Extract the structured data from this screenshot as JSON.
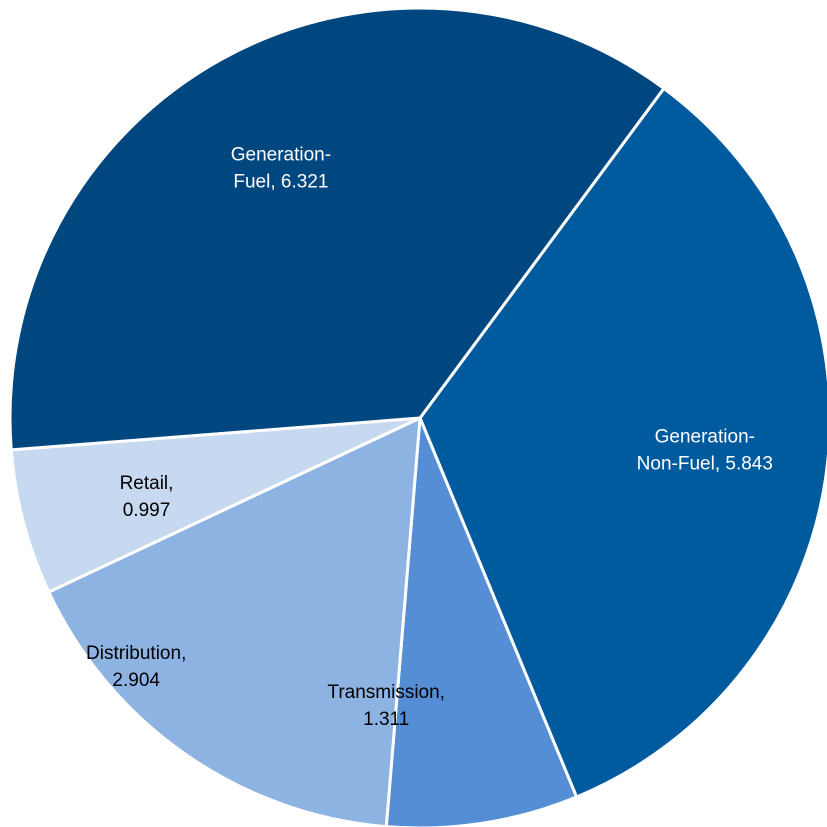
{
  "chart_data": {
    "type": "pie",
    "title": "",
    "slices": [
      {
        "name": "Generation-Non-Fuel",
        "value": 5.843,
        "label_lines": [
          "Generation-",
          "Non-Fuel,  5.843"
        ],
        "color": "#005A9E",
        "label_color": "#ffffff"
      },
      {
        "name": "Transmission",
        "value": 1.311,
        "label_lines": [
          "Transmission,",
          "1.311"
        ],
        "color": "#558ED5",
        "label_color": "#000000"
      },
      {
        "name": "Distribution",
        "value": 2.904,
        "label_lines": [
          "Distribution,",
          "2.904"
        ],
        "color": "#8DB3E2",
        "label_color": "#000000"
      },
      {
        "name": "Retail",
        "value": 0.997,
        "label_lines": [
          "Retail,",
          "0.997"
        ],
        "color": "#C6D9F1",
        "label_color": "#000000"
      },
      {
        "name": "Generation-Fuel",
        "value": 6.321,
        "label_lines": [
          "Generation-",
          "Fuel,  6.321"
        ],
        "color": "#00467F",
        "label_color": "#ffffff"
      }
    ],
    "legend": "none"
  }
}
